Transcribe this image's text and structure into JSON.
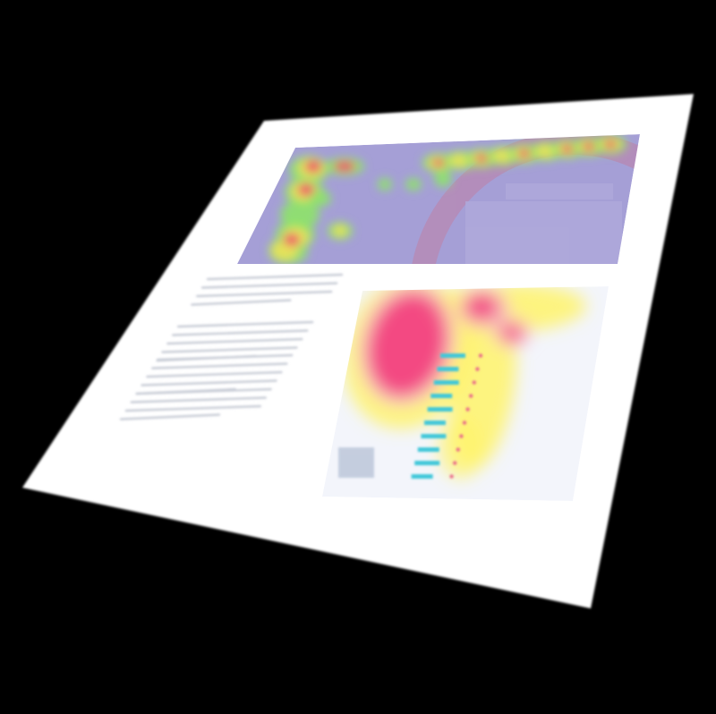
{
  "scene": {
    "background_color": "#000000",
    "paper_color": "#ffffff",
    "blurred": true
  },
  "top_panel": {
    "background_color": "#a59fd6",
    "arc_color": "#c07fa6",
    "heat_colors": {
      "low": "#8ee36a",
      "mid": "#e9e25a",
      "high": "#ee4a6a"
    }
  },
  "bottom_panel": {
    "background_color": "#f3f5fb",
    "bar_color": "#3fc7d9",
    "marker_color": "#e96a8a",
    "heat_colors": {
      "low": "#fff36a",
      "mid": "#f7b0c8",
      "high": "#f2447e"
    }
  },
  "text_block": {
    "line_color": "#c8ccd6"
  }
}
